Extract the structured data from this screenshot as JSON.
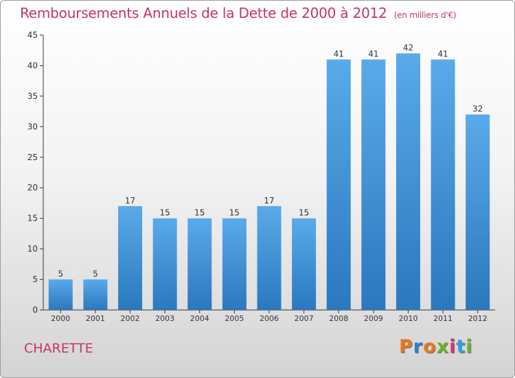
{
  "chart_data": {
    "type": "bar",
    "title": "Remboursements Annuels de la Dette de 2000 à 2012",
    "unit_label": "(en milliers d'€)",
    "categories": [
      "2000",
      "2001",
      "2002",
      "2003",
      "2004",
      "2005",
      "2006",
      "2007",
      "2008",
      "2009",
      "2010",
      "2011",
      "2012"
    ],
    "values": [
      5,
      5,
      17,
      15,
      15,
      15,
      17,
      15,
      41,
      41,
      42,
      41,
      32
    ],
    "ylim": [
      0,
      45
    ],
    "yticks": [
      0,
      5,
      10,
      15,
      20,
      25,
      30,
      35,
      40,
      45
    ],
    "grid": false,
    "bar_color": "#3f93d6"
  },
  "footer": {
    "place_name": "CHARETTE",
    "logo_text": "Proxiti",
    "logo_colors": [
      "#e8761e",
      "#2a7fd0",
      "#e8761e",
      "#6cb22a",
      "#d9336b",
      "#3a9be0",
      "#6cb22a"
    ]
  }
}
